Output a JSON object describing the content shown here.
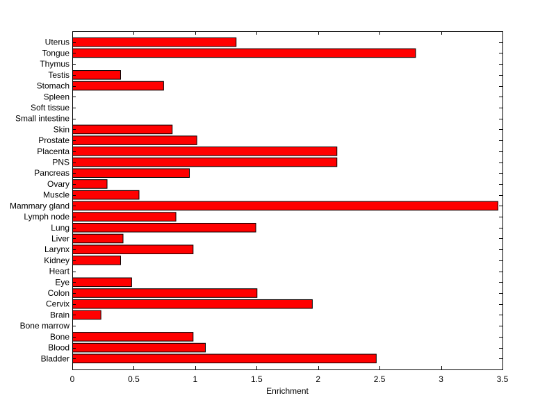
{
  "chart_data": {
    "type": "bar",
    "orientation": "horizontal",
    "xlabel": "Enrichment",
    "ylabel": "",
    "title": "",
    "xlim": [
      0,
      3.5
    ],
    "xticks": [
      0,
      0.5,
      1,
      1.5,
      2,
      2.5,
      3,
      3.5
    ],
    "xtick_labels": [
      "0",
      "0.5",
      "1",
      "1.5",
      "2",
      "2.5",
      "3",
      "3.5"
    ],
    "grid": false,
    "bar_color": "#ff0000",
    "bar_edge_color": "#000000",
    "categories": [
      "Bladder",
      "Blood",
      "Bone",
      "Bone marrow",
      "Brain",
      "Cervix",
      "Colon",
      "Eye",
      "Heart",
      "Kidney",
      "Larynx",
      "Liver",
      "Lung",
      "Lymph node",
      "Mammary gland",
      "Muscle",
      "Ovary",
      "Pancreas",
      "PNS",
      "Placenta",
      "Prostate",
      "Skin",
      "Small intestine",
      "Soft tissue",
      "Spleen",
      "Stomach",
      "Testis",
      "Thymus",
      "Tongue",
      "Uterus"
    ],
    "values": [
      2.47,
      1.08,
      0.98,
      0,
      0.23,
      1.95,
      1.5,
      0.48,
      0,
      0.39,
      0.98,
      0.41,
      1.49,
      0.84,
      3.46,
      0.54,
      0.28,
      0.95,
      2.15,
      2.15,
      1.01,
      0.81,
      0,
      0,
      0,
      0.74,
      0.39,
      0,
      2.79,
      1.33
    ]
  }
}
